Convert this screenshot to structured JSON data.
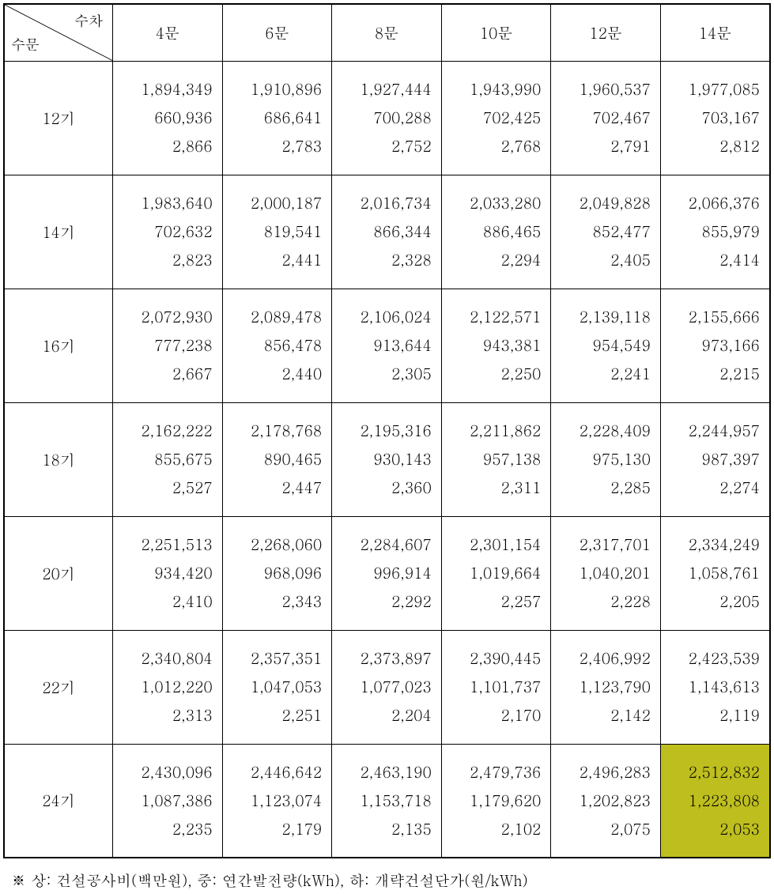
{
  "header": {
    "diag_top": "수차",
    "diag_bottom": "수문",
    "cols": [
      "4문",
      "6문",
      "8문",
      "10문",
      "12문",
      "14문"
    ]
  },
  "rows": [
    {
      "label": "12기",
      "cells": [
        [
          "1,894,349",
          "660,936",
          "2,866"
        ],
        [
          "1,910,896",
          "686,641",
          "2,783"
        ],
        [
          "1,927,444",
          "700,288",
          "2,752"
        ],
        [
          "1,943,990",
          "702,425",
          "2,768"
        ],
        [
          "1,960,537",
          "702,467",
          "2,791"
        ],
        [
          "1,977,085",
          "703,167",
          "2,812"
        ]
      ]
    },
    {
      "label": "14기",
      "cells": [
        [
          "1,983,640",
          "702,632",
          "2,823"
        ],
        [
          "2,000,187",
          "819,541",
          "2,441"
        ],
        [
          "2,016,734",
          "866,344",
          "2,328"
        ],
        [
          "2,033,280",
          "886,465",
          "2,294"
        ],
        [
          "2,049,828",
          "852,477",
          "2,405"
        ],
        [
          "2,066,376",
          "855,979",
          "2,414"
        ]
      ]
    },
    {
      "label": "16기",
      "cells": [
        [
          "2,072,930",
          "777,238",
          "2,667"
        ],
        [
          "2,089,478",
          "856,478",
          "2,440"
        ],
        [
          "2,106,024",
          "913,644",
          "2,305"
        ],
        [
          "2,122,571",
          "943,381",
          "2,250"
        ],
        [
          "2,139,118",
          "954,549",
          "2,241"
        ],
        [
          "2,155,666",
          "973,166",
          "2,215"
        ]
      ]
    },
    {
      "label": "18기",
      "cells": [
        [
          "2,162,222",
          "855,675",
          "2,527"
        ],
        [
          "2,178,768",
          "890,465",
          "2,447"
        ],
        [
          "2,195,316",
          "930,143",
          "2,360"
        ],
        [
          "2,211,862",
          "957,138",
          "2,311"
        ],
        [
          "2,228,409",
          "975,130",
          "2,285"
        ],
        [
          "2,244,957",
          "987,397",
          "2,274"
        ]
      ]
    },
    {
      "label": "20기",
      "cells": [
        [
          "2,251,513",
          "934,420",
          "2,410"
        ],
        [
          "2,268,060",
          "968,096",
          "2,343"
        ],
        [
          "2,284,607",
          "996,914",
          "2,292"
        ],
        [
          "2,301,154",
          "1,019,664",
          "2,257"
        ],
        [
          "2,317,701",
          "1,040,201",
          "2,228"
        ],
        [
          "2,334,249",
          "1,058,761",
          "2,205"
        ]
      ]
    },
    {
      "label": "22기",
      "cells": [
        [
          "2,340,804",
          "1,012,220",
          "2,313"
        ],
        [
          "2,357,351",
          "1,047,053",
          "2,251"
        ],
        [
          "2,373,897",
          "1,077,023",
          "2,204"
        ],
        [
          "2,390,445",
          "1,101,737",
          "2,170"
        ],
        [
          "2,406,992",
          "1,123,790",
          "2,142"
        ],
        [
          "2,423,539",
          "1,143,613",
          "2,119"
        ]
      ]
    },
    {
      "label": "24기",
      "cells": [
        [
          "2,430,096",
          "1,087,386",
          "2,235"
        ],
        [
          "2,446,642",
          "1,123,074",
          "2,179"
        ],
        [
          "2,463,190",
          "1,153,718",
          "2,135"
        ],
        [
          "2,479,736",
          "1,179,620",
          "2,102"
        ],
        [
          "2,496,283",
          "1,202,823",
          "2,075"
        ],
        [
          "2,512,832",
          "1,223,808",
          "2,053"
        ]
      ],
      "highlight_col": 5
    }
  ],
  "footnote": "※ 상: 건설공사비(백만원), 중: 연간발전량(kWh), 하: 개략건설단가(원/kWh)",
  "colors": {
    "highlight_bg": "#bebe1e",
    "border": "#000000",
    "text": "#000000",
    "background": "#ffffff"
  },
  "layout": {
    "table_type": "table",
    "columns_count": 7,
    "rows_count": 7,
    "cell_lines": 3,
    "font_size_pt": 14,
    "line_height": 1.9
  }
}
